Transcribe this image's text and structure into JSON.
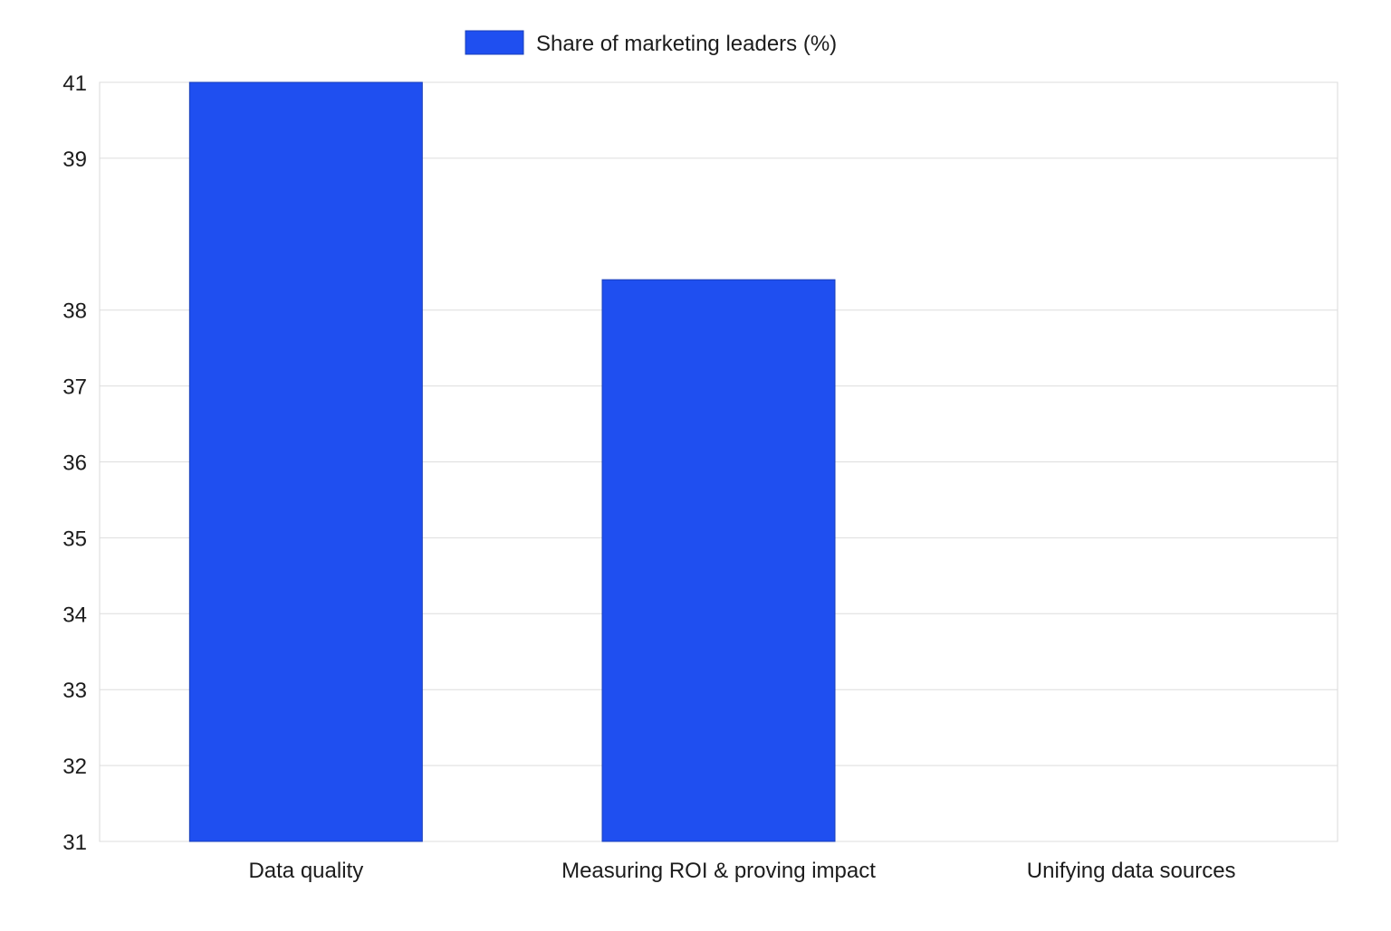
{
  "chart_data": {
    "type": "bar",
    "categories": [
      "Data quality",
      "Measuring ROI & proving impact",
      "Unifying data sources"
    ],
    "series": [
      {
        "name": "Share of marketing leaders (%)",
        "values": [
          41,
          38.4,
          31
        ],
        "color": "#1f4ff0"
      }
    ],
    "yticks": [
      31,
      32,
      33,
      34,
      35,
      36,
      37,
      38,
      39,
      41
    ],
    "ylim": [
      31,
      41
    ],
    "grid": true,
    "legend_position": "top-center"
  }
}
